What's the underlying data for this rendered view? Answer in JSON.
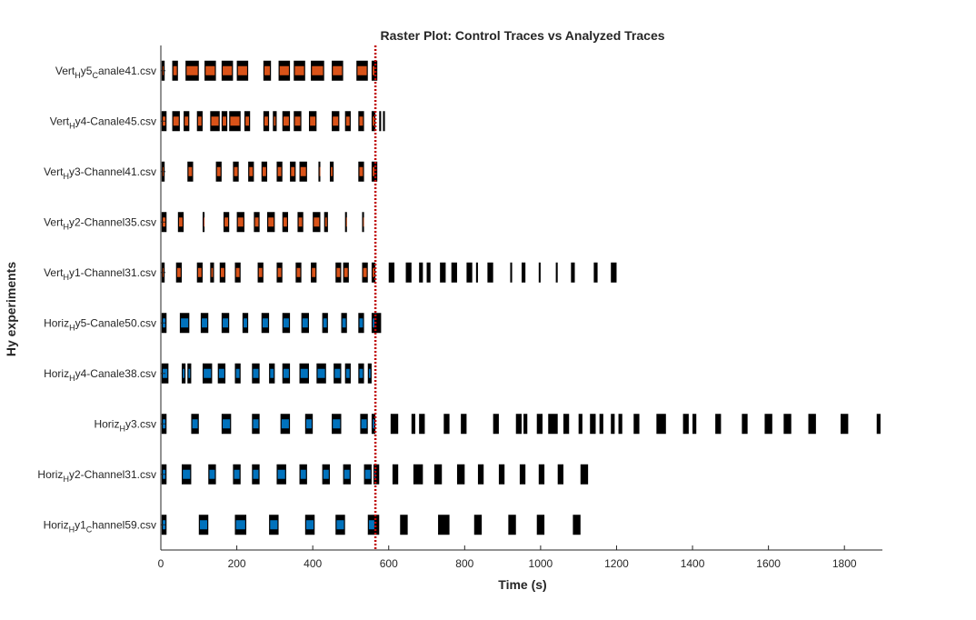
{
  "chart_data": {
    "type": "raster",
    "title": "Raster Plot: Control Traces vs Analyzed Traces",
    "xlabel": "Time (s)",
    "ylabel": "Hy experiments",
    "xlim": [
      0,
      1900
    ],
    "xticks": [
      0,
      200,
      400,
      600,
      800,
      1000,
      1200,
      1400,
      1600,
      1800
    ],
    "xtick_labels": [
      "0",
      "200",
      "400",
      "600",
      "800",
      "1000",
      "1200",
      "1400",
      "1600",
      "1800"
    ],
    "vline": {
      "x": 565,
      "color": "#c00000"
    },
    "colors": {
      "vert": "#d95319",
      "horiz": "#0072bd",
      "spike": "#000000"
    },
    "rows": [
      {
        "label": [
          [
            "Vert",
            ""
          ],
          [
            "H",
            "sub"
          ],
          [
            "y5",
            ""
          ],
          [
            "C",
            "sub"
          ],
          [
            "anale41.csv",
            ""
          ]
        ],
        "group": "vert",
        "bursts": [
          [
            2,
            10
          ],
          [
            30,
            45
          ],
          [
            65,
            100
          ],
          [
            115,
            145
          ],
          [
            160,
            190
          ],
          [
            200,
            230
          ],
          [
            270,
            290
          ],
          [
            310,
            340
          ],
          [
            350,
            380
          ],
          [
            395,
            430
          ],
          [
            450,
            480
          ],
          [
            515,
            545
          ],
          [
            555,
            570
          ]
        ]
      },
      {
        "label": [
          [
            "Vert",
            ""
          ],
          [
            "H",
            "sub"
          ],
          [
            "y4-Canale45.csv",
            ""
          ]
        ],
        "group": "vert",
        "bursts": [
          [
            2,
            15
          ],
          [
            30,
            50
          ],
          [
            60,
            75
          ],
          [
            95,
            110
          ],
          [
            130,
            155
          ],
          [
            160,
            175
          ],
          [
            180,
            210
          ],
          [
            220,
            235
          ],
          [
            270,
            285
          ],
          [
            295,
            305
          ],
          [
            320,
            340
          ],
          [
            350,
            370
          ],
          [
            390,
            410
          ],
          [
            450,
            470
          ],
          [
            485,
            500
          ],
          [
            520,
            535
          ],
          [
            555,
            565
          ],
          [
            575,
            580
          ],
          [
            585,
            590
          ]
        ]
      },
      {
        "label": [
          [
            "Vert",
            ""
          ],
          [
            "H",
            "sub"
          ],
          [
            "y3-Channel41.csv",
            ""
          ]
        ],
        "group": "vert",
        "bursts": [
          [
            2,
            10
          ],
          [
            70,
            85
          ],
          [
            145,
            160
          ],
          [
            190,
            205
          ],
          [
            230,
            245
          ],
          [
            265,
            280
          ],
          [
            305,
            320
          ],
          [
            340,
            355
          ],
          [
            365,
            385
          ],
          [
            415,
            420
          ],
          [
            445,
            455
          ],
          [
            520,
            535
          ],
          [
            555,
            570
          ]
        ]
      },
      {
        "label": [
          [
            "Vert",
            ""
          ],
          [
            "H",
            "sub"
          ],
          [
            "y2-Channel35.csv",
            ""
          ]
        ],
        "group": "vert",
        "bursts": [
          [
            2,
            15
          ],
          [
            45,
            60
          ],
          [
            110,
            115
          ],
          [
            165,
            180
          ],
          [
            200,
            220
          ],
          [
            245,
            260
          ],
          [
            280,
            300
          ],
          [
            320,
            335
          ],
          [
            360,
            375
          ],
          [
            400,
            420
          ],
          [
            430,
            440
          ],
          [
            485,
            490
          ],
          [
            530,
            535
          ]
        ]
      },
      {
        "label": [
          [
            "Vert",
            ""
          ],
          [
            "H",
            "sub"
          ],
          [
            "y1-Channel31.csv",
            ""
          ]
        ],
        "group": "vert",
        "bursts": [
          [
            2,
            10
          ],
          [
            40,
            55
          ],
          [
            95,
            110
          ],
          [
            130,
            140
          ],
          [
            155,
            170
          ],
          [
            195,
            210
          ],
          [
            255,
            270
          ],
          [
            305,
            320
          ],
          [
            355,
            370
          ],
          [
            395,
            410
          ],
          [
            460,
            475
          ],
          [
            480,
            495
          ],
          [
            530,
            545
          ],
          [
            555,
            565
          ],
          [
            600,
            615
          ],
          [
            645,
            660
          ],
          [
            680,
            690
          ],
          [
            700,
            710
          ],
          [
            735,
            750
          ],
          [
            765,
            780
          ],
          [
            805,
            820
          ],
          [
            830,
            835
          ],
          [
            860,
            875
          ],
          [
            920,
            925
          ],
          [
            950,
            960
          ],
          [
            995,
            1000
          ],
          [
            1040,
            1045
          ],
          [
            1080,
            1090
          ],
          [
            1140,
            1150
          ],
          [
            1185,
            1200
          ]
        ]
      },
      {
        "label": [
          [
            "Horiz",
            ""
          ],
          [
            "H",
            "sub"
          ],
          [
            "y5-Canale50.csv",
            ""
          ]
        ],
        "group": "horiz",
        "bursts": [
          [
            2,
            15
          ],
          [
            50,
            75
          ],
          [
            105,
            125
          ],
          [
            160,
            180
          ],
          [
            215,
            230
          ],
          [
            265,
            285
          ],
          [
            320,
            340
          ],
          [
            370,
            390
          ],
          [
            425,
            440
          ],
          [
            475,
            490
          ],
          [
            520,
            535
          ],
          [
            555,
            580
          ]
        ]
      },
      {
        "label": [
          [
            "Horiz",
            ""
          ],
          [
            "H",
            "sub"
          ],
          [
            "y4-Canale38.csv",
            ""
          ]
        ],
        "group": "horiz",
        "bursts": [
          [
            2,
            20
          ],
          [
            55,
            65
          ],
          [
            70,
            80
          ],
          [
            110,
            135
          ],
          [
            150,
            170
          ],
          [
            195,
            210
          ],
          [
            240,
            260
          ],
          [
            285,
            300
          ],
          [
            320,
            340
          ],
          [
            365,
            390
          ],
          [
            410,
            435
          ],
          [
            455,
            475
          ],
          [
            485,
            500
          ],
          [
            520,
            535
          ],
          [
            545,
            555
          ]
        ]
      },
      {
        "label": [
          [
            "Horiz",
            ""
          ],
          [
            "H",
            "sub"
          ],
          [
            "y3.csv",
            ""
          ]
        ],
        "group": "horiz",
        "bursts": [
          [
            2,
            15
          ],
          [
            80,
            100
          ],
          [
            160,
            185
          ],
          [
            240,
            260
          ],
          [
            315,
            340
          ],
          [
            380,
            400
          ],
          [
            450,
            475
          ],
          [
            525,
            545
          ],
          [
            555,
            565
          ],
          [
            605,
            625
          ],
          [
            660,
            670
          ],
          [
            680,
            695
          ],
          [
            745,
            760
          ],
          [
            790,
            805
          ],
          [
            875,
            890
          ],
          [
            935,
            950
          ],
          [
            955,
            965
          ],
          [
            990,
            1005
          ],
          [
            1020,
            1045
          ],
          [
            1060,
            1075
          ],
          [
            1100,
            1110
          ],
          [
            1130,
            1145
          ],
          [
            1155,
            1165
          ],
          [
            1185,
            1195
          ],
          [
            1205,
            1215
          ],
          [
            1245,
            1260
          ],
          [
            1305,
            1330
          ],
          [
            1375,
            1390
          ],
          [
            1400,
            1410
          ],
          [
            1460,
            1475
          ],
          [
            1530,
            1545
          ],
          [
            1590,
            1610
          ],
          [
            1640,
            1660
          ],
          [
            1705,
            1725
          ],
          [
            1790,
            1810
          ],
          [
            1885,
            1895
          ]
        ]
      },
      {
        "label": [
          [
            "Horiz",
            ""
          ],
          [
            "H",
            "sub"
          ],
          [
            "y2-Channel31.csv",
            ""
          ]
        ],
        "group": "horiz",
        "bursts": [
          [
            2,
            15
          ],
          [
            55,
            80
          ],
          [
            125,
            145
          ],
          [
            190,
            210
          ],
          [
            240,
            260
          ],
          [
            305,
            330
          ],
          [
            365,
            385
          ],
          [
            425,
            445
          ],
          [
            480,
            500
          ],
          [
            535,
            555
          ],
          [
            560,
            575
          ],
          [
            610,
            625
          ],
          [
            665,
            690
          ],
          [
            720,
            740
          ],
          [
            780,
            800
          ],
          [
            835,
            850
          ],
          [
            890,
            905
          ],
          [
            945,
            960
          ],
          [
            995,
            1010
          ],
          [
            1045,
            1060
          ],
          [
            1105,
            1125
          ]
        ]
      },
      {
        "label": [
          [
            "Horiz",
            ""
          ],
          [
            "H",
            "sub"
          ],
          [
            "y1",
            ""
          ],
          [
            "C",
            "sub"
          ],
          [
            "hannel59.csv",
            ""
          ]
        ],
        "group": "horiz",
        "bursts": [
          [
            2,
            15
          ],
          [
            100,
            125
          ],
          [
            195,
            225
          ],
          [
            285,
            310
          ],
          [
            380,
            405
          ],
          [
            460,
            485
          ],
          [
            545,
            575
          ],
          [
            630,
            650
          ],
          [
            730,
            760
          ],
          [
            825,
            845
          ],
          [
            915,
            935
          ],
          [
            990,
            1010
          ],
          [
            1085,
            1105
          ]
        ]
      }
    ]
  }
}
